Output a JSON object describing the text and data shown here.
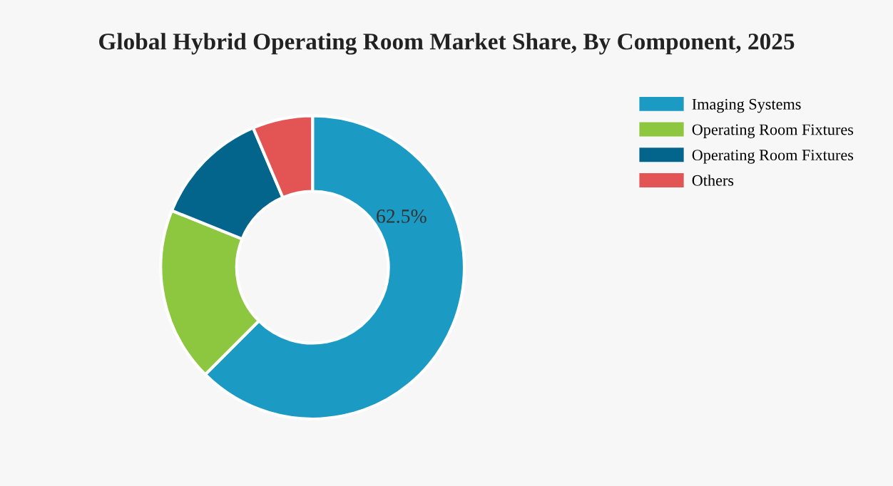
{
  "chart_data": {
    "type": "donut",
    "title": "Global Hybrid Operating Room Market Share, By Component, 2025",
    "categories": [
      "Imaging Systems",
      "Operating Room Fixtures",
      "Operating Room Fixtures",
      "Others"
    ],
    "values": [
      62.5,
      18.6,
      12.5,
      6.4
    ],
    "colors": [
      "#1b9ac3",
      "#8dc63f",
      "#03658c",
      "#e35454"
    ],
    "value_labels": [
      "62.5%",
      null,
      null,
      null
    ],
    "legend": "right"
  }
}
